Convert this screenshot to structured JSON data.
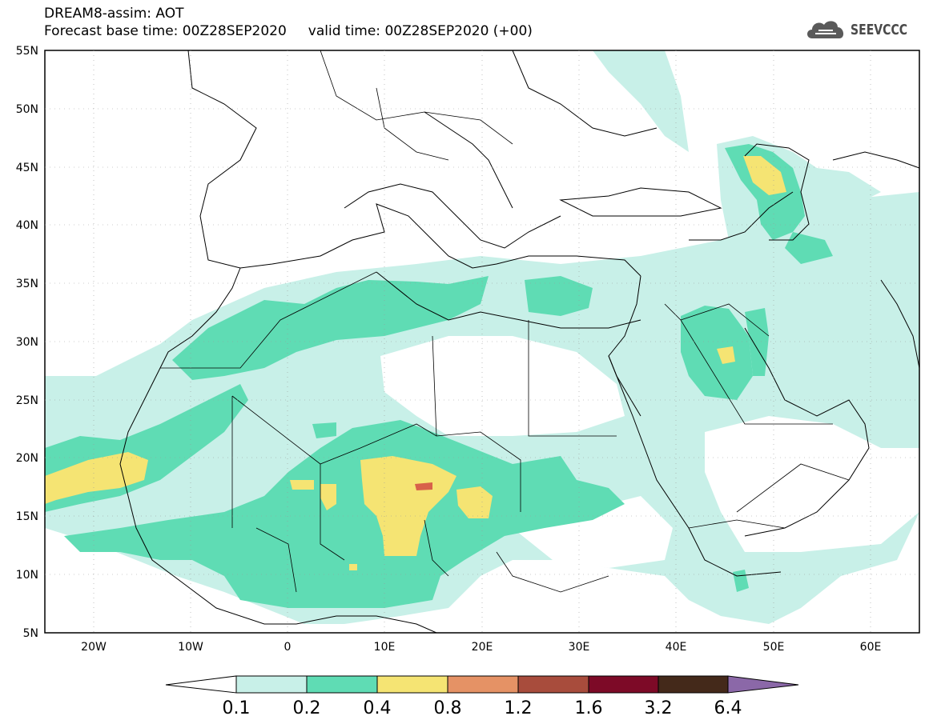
{
  "header": {
    "title": "DREAM8-assim: AOT",
    "line2": "Forecast base time: 00Z28SEP2020     valid time: 00Z28SEP2020 (+00)"
  },
  "logo": {
    "text": "SEEVCCC",
    "icon": "cloud-icon",
    "color": "#5a5a5a"
  },
  "map": {
    "lon_range": [
      -25,
      65
    ],
    "lat_range": [
      5,
      55
    ],
    "lat_labels": [
      "55N",
      "50N",
      "45N",
      "40N",
      "35N",
      "30N",
      "25N",
      "20N",
      "15N",
      "10N",
      "5N"
    ],
    "lon_labels": [
      "20W",
      "10W",
      "0",
      "10E",
      "20E",
      "30E",
      "40E",
      "50E",
      "60E"
    ]
  },
  "colorbar": {
    "labels": [
      "0.1",
      "0.2",
      "0.4",
      "0.8",
      "1.2",
      "1.6",
      "3.2",
      "6.4"
    ],
    "colors": [
      "#ffffff",
      "#c8f0e8",
      "#5fdcb4",
      "#f5e473",
      "#e59265",
      "#a84c3c",
      "#7d0a27",
      "#44291a",
      "#8b68a8"
    ]
  }
}
